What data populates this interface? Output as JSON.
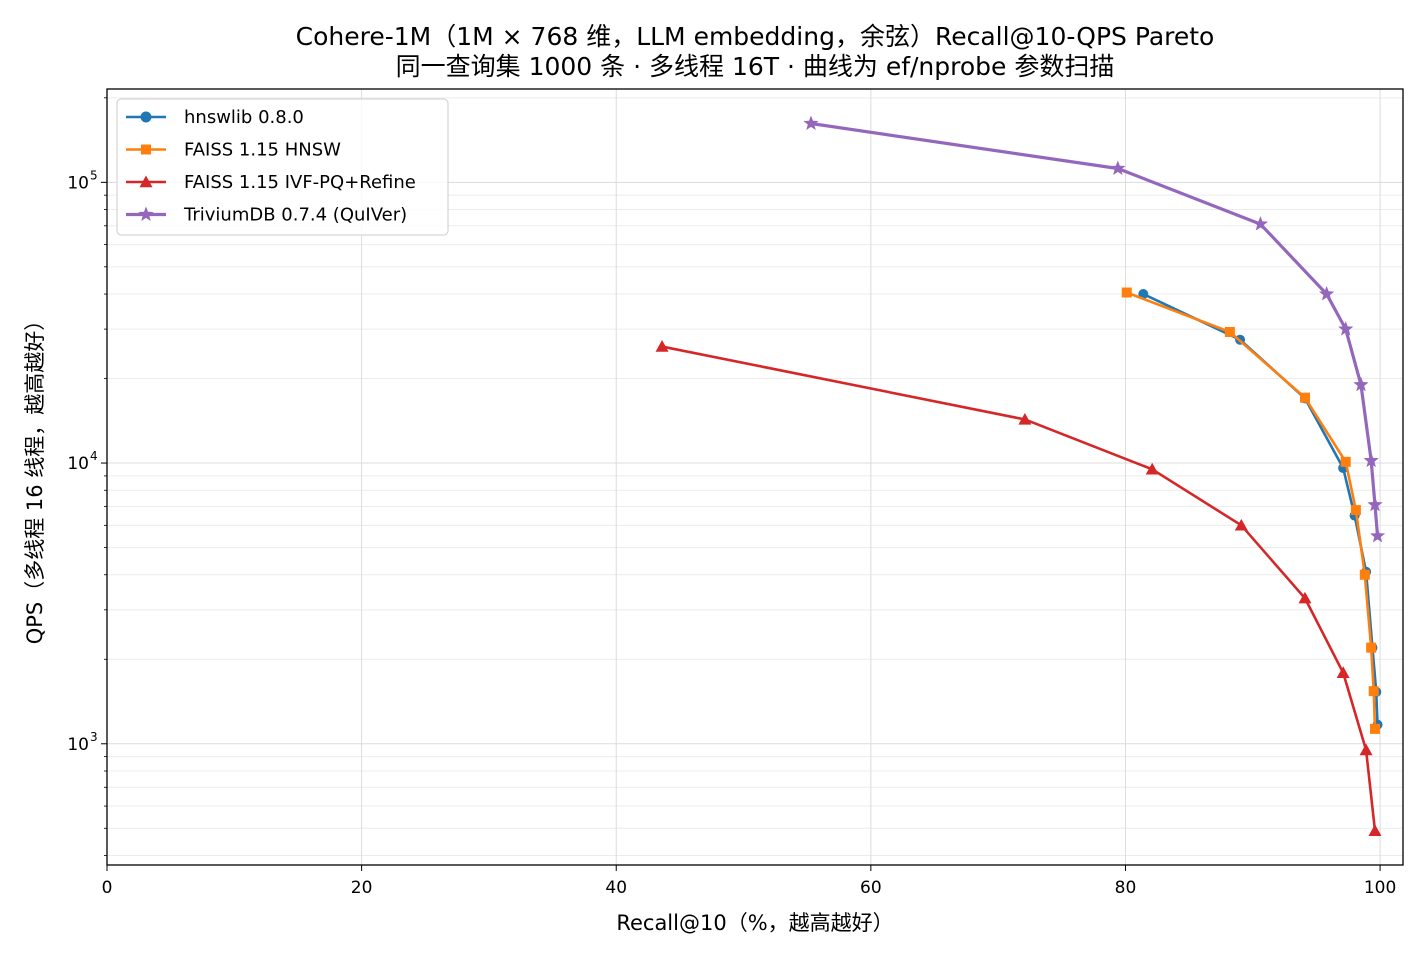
{
  "chart_data": {
    "type": "line",
    "title": "Cohere-1M（1M × 768 维，LLM embedding，余弦）Recall@10-QPS Pareto",
    "subtitle": "同一查询集 1000 条 · 多线程 16T · 曲线为 ef/nprobe 参数扫描",
    "xlabel": "Recall@10（%，越高越好）",
    "ylabel": "QPS（多线程 16 线程，越高越好）",
    "xlim": [
      0,
      101.8
    ],
    "ylim": [
      370,
      215000
    ],
    "yscale": "log",
    "grid": true,
    "legend_position": "top-left",
    "x_ticks": [
      {
        "value": 0,
        "label": "0"
      },
      {
        "value": 20,
        "label": "20"
      },
      {
        "value": 40,
        "label": "40"
      },
      {
        "value": 60,
        "label": "60"
      },
      {
        "value": 80,
        "label": "80"
      },
      {
        "value": 100,
        "label": "100"
      }
    ],
    "y_ticks": [
      {
        "value": 1000,
        "label": "10",
        "exp": "3"
      },
      {
        "value": 10000,
        "label": "10",
        "exp": "4"
      },
      {
        "value": 100000,
        "label": "10",
        "exp": "5"
      }
    ],
    "series": [
      {
        "name": "hnswlib 0.8.0",
        "color": "#1f77b4",
        "marker": "circle",
        "x": [
          81.4,
          89.0,
          94.1,
          97.1,
          98.0,
          98.9,
          99.4,
          99.7,
          99.8
        ],
        "y": [
          40000,
          27500,
          17000,
          9600,
          6500,
          4100,
          2200,
          1530,
          1170
        ]
      },
      {
        "name": "FAISS 1.15 HNSW",
        "color": "#ff7f0e",
        "marker": "square",
        "x": [
          80.1,
          88.2,
          94.1,
          97.3,
          98.1,
          98.8,
          99.3,
          99.5,
          99.6
        ],
        "y": [
          40500,
          29300,
          17100,
          10100,
          6800,
          4000,
          2200,
          1540,
          1130
        ]
      },
      {
        "name": "FAISS 1.15 IVF-PQ+Refine",
        "color": "#d62728",
        "marker": "triangle",
        "x": [
          43.6,
          72.1,
          82.1,
          89.1,
          94.1,
          97.1,
          98.9,
          99.6
        ],
        "y": [
          26000,
          14300,
          9500,
          6000,
          3300,
          1790,
          950,
          490
        ]
      },
      {
        "name": "TriviumDB 0.7.4 (QuIVer)",
        "color": "#9467bd",
        "marker": "star",
        "x": [
          55.3,
          79.4,
          90.6,
          95.8,
          97.3,
          98.5,
          99.3,
          99.6,
          99.8
        ],
        "y": [
          162000,
          112000,
          71000,
          40000,
          30000,
          19000,
          10200,
          7100,
          5500
        ]
      }
    ]
  }
}
